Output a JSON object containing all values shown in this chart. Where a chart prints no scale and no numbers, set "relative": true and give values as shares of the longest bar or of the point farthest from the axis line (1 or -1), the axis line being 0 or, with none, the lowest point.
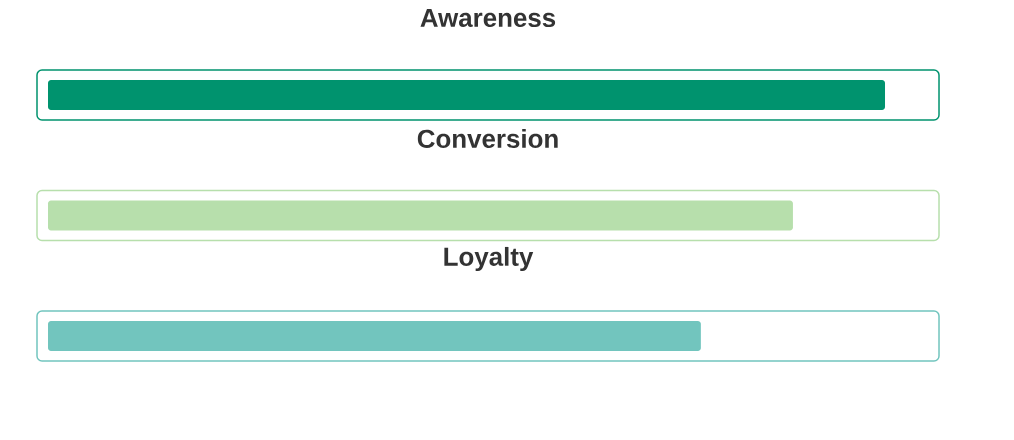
{
  "chart_data": {
    "type": "bar",
    "orientation": "horizontal",
    "relative": true,
    "categories": [
      "Awareness",
      "Conversion",
      "Loyalty"
    ],
    "values": [
      1,
      0.89,
      0.78
    ],
    "colors": [
      "#00936e",
      "#b7dfac",
      "#72c5be"
    ]
  }
}
